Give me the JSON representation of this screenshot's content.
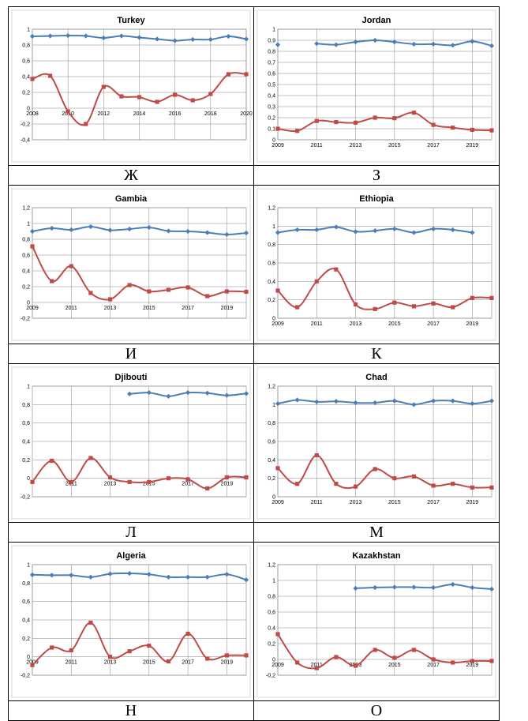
{
  "colors": {
    "series1": "#4a7ebb",
    "series2": "#be4b48",
    "grid": "#868686",
    "frame": "#d9d9d9"
  },
  "rows": [
    {
      "labels": [
        "Ж",
        "З"
      ]
    },
    {
      "labels": [
        "И",
        "К"
      ]
    },
    {
      "labels": [
        "Л",
        "М"
      ]
    },
    {
      "labels": [
        "Н",
        "О"
      ]
    }
  ],
  "chart_data": [
    {
      "type": "line",
      "title": "Turkey",
      "label": "Ж",
      "x": [
        2008,
        2009,
        2010,
        2011,
        2012,
        2013,
        2014,
        2015,
        2016,
        2017,
        2018,
        2019,
        2020
      ],
      "x_ticks": [
        "2008",
        "2010",
        "2012",
        "2014",
        "2016",
        "2018",
        "2020"
      ],
      "xlim": [
        2008,
        2020
      ],
      "ylim": [
        -0.4,
        1
      ],
      "y_ticks": [
        "-0,4",
        "-0,2",
        "0",
        "0,2",
        "0,4",
        "0,6",
        "0,8",
        "1"
      ],
      "series": [
        {
          "values": [
            0.91,
            0.915,
            0.92,
            0.915,
            0.89,
            0.915,
            0.895,
            0.875,
            0.855,
            0.87,
            0.87,
            0.91,
            0.875
          ]
        },
        {
          "values": [
            0.37,
            0.41,
            -0.04,
            -0.2,
            0.27,
            0.15,
            0.14,
            0.08,
            0.17,
            0.1,
            0.18,
            0.43,
            0.43
          ]
        }
      ]
    },
    {
      "type": "line",
      "title": "Jordan",
      "label": "З",
      "x": [
        2009,
        2010,
        2011,
        2012,
        2013,
        2014,
        2015,
        2016,
        2017,
        2018,
        2019,
        2020
      ],
      "x_ticks": [
        "2009",
        "2011",
        "2013",
        "2015",
        "2017",
        "2019"
      ],
      "xlim": [
        2009,
        2020
      ],
      "ylim": [
        0,
        1
      ],
      "y_ticks": [
        "0",
        "0,1",
        "0,2",
        "0,3",
        "0,4",
        "0,5",
        "0,6",
        "0,7",
        "0,8",
        "0,9",
        "1"
      ],
      "series": [
        {
          "values": [
            0.86,
            null,
            0.87,
            0.86,
            0.885,
            0.9,
            0.885,
            0.865,
            0.865,
            0.855,
            0.89,
            0.85
          ]
        },
        {
          "values": [
            0.1,
            0.08,
            0.17,
            0.16,
            0.155,
            0.2,
            0.195,
            0.245,
            0.135,
            0.11,
            0.09,
            0.085
          ]
        }
      ]
    },
    {
      "type": "line",
      "title": "Gambia",
      "label": "И",
      "x": [
        2009,
        2010,
        2011,
        2012,
        2013,
        2014,
        2015,
        2016,
        2017,
        2018,
        2019,
        2020
      ],
      "x_ticks": [
        "2009",
        "2011",
        "2013",
        "2015",
        "2017",
        "2019"
      ],
      "xlim": [
        2009,
        2020
      ],
      "ylim": [
        -0.2,
        1.2
      ],
      "y_ticks": [
        "-0,2",
        "0",
        "0,2",
        "0,4",
        "0,6",
        "0,8",
        "1",
        "1,2"
      ],
      "series": [
        {
          "values": [
            0.9,
            0.94,
            0.92,
            0.96,
            0.915,
            0.93,
            0.95,
            0.905,
            0.9,
            0.885,
            0.86,
            0.88
          ]
        },
        {
          "values": [
            0.71,
            0.27,
            0.46,
            0.12,
            0.04,
            0.22,
            0.14,
            0.16,
            0.19,
            0.08,
            0.14,
            0.135
          ]
        }
      ]
    },
    {
      "type": "line",
      "title": "Ethiopia",
      "label": "К",
      "x": [
        2009,
        2010,
        2011,
        2012,
        2013,
        2014,
        2015,
        2016,
        2017,
        2018,
        2019,
        2020
      ],
      "x_ticks": [
        "2009",
        "2011",
        "2013",
        "2015",
        "2017",
        "2019"
      ],
      "xlim": [
        2009,
        2020
      ],
      "ylim": [
        0,
        1.2
      ],
      "y_ticks": [
        "0",
        "0,2",
        "0,4",
        "0,6",
        "0,8",
        "1",
        "1,2"
      ],
      "series": [
        {
          "values": [
            0.93,
            0.96,
            0.96,
            0.99,
            0.94,
            0.95,
            0.97,
            0.93,
            0.97,
            0.96,
            0.93,
            null
          ]
        },
        {
          "values": [
            0.3,
            0.12,
            0.4,
            0.53,
            0.15,
            0.1,
            0.17,
            0.13,
            0.16,
            0.12,
            0.22,
            0.22
          ]
        }
      ]
    },
    {
      "type": "line",
      "title": "Djibouti",
      "label": "Л",
      "x": [
        2009,
        2010,
        2011,
        2012,
        2013,
        2014,
        2015,
        2016,
        2017,
        2018,
        2019,
        2020
      ],
      "x_ticks": [
        "2011",
        "2013",
        "2015",
        "2017",
        "2019"
      ],
      "xlim": [
        2009,
        2020
      ],
      "ylim": [
        -0.2,
        1
      ],
      "y_ticks": [
        "-0,2",
        "0",
        "0,2",
        "0,4",
        "0,6",
        "0,8",
        "1"
      ],
      "series": [
        {
          "values": [
            null,
            null,
            null,
            null,
            null,
            0.915,
            0.93,
            0.89,
            0.93,
            0.925,
            0.9,
            0.92
          ]
        },
        {
          "values": [
            -0.04,
            0.19,
            -0.04,
            0.22,
            0.01,
            -0.04,
            -0.04,
            0.0,
            -0.01,
            -0.11,
            0.01,
            0.01
          ]
        }
      ]
    },
    {
      "type": "line",
      "title": "Chad",
      "label": "М",
      "x": [
        2009,
        2010,
        2011,
        2012,
        2013,
        2014,
        2015,
        2016,
        2017,
        2018,
        2019,
        2020
      ],
      "x_ticks": [
        "2009",
        "2011",
        "2013",
        "2015",
        "2017",
        "2019"
      ],
      "xlim": [
        2009,
        2020
      ],
      "ylim": [
        0,
        1.2
      ],
      "y_ticks": [
        "0",
        "0,2",
        "0,4",
        "0,6",
        "0,8",
        "1",
        "1,2"
      ],
      "series": [
        {
          "values": [
            1.01,
            1.05,
            1.03,
            1.035,
            1.02,
            1.02,
            1.04,
            1.0,
            1.04,
            1.04,
            1.01,
            1.04
          ]
        },
        {
          "values": [
            0.31,
            0.14,
            0.45,
            0.14,
            0.11,
            0.3,
            0.2,
            0.22,
            0.12,
            0.14,
            0.1,
            0.1
          ]
        }
      ]
    },
    {
      "type": "line",
      "title": "Algeria",
      "label": "Н",
      "x": [
        2009,
        2010,
        2011,
        2012,
        2013,
        2014,
        2015,
        2016,
        2017,
        2018,
        2019,
        2020
      ],
      "x_ticks": [
        "2009",
        "2011",
        "2013",
        "2015",
        "2017",
        "2019"
      ],
      "xlim": [
        2009,
        2020
      ],
      "ylim": [
        -0.2,
        1
      ],
      "y_ticks": [
        "-0,2",
        "0",
        "0,2",
        "0,4",
        "0,6",
        "0,8",
        "1"
      ],
      "series": [
        {
          "values": [
            0.89,
            0.885,
            0.885,
            0.865,
            0.9,
            0.905,
            0.895,
            0.865,
            0.865,
            0.865,
            0.895,
            0.835
          ]
        },
        {
          "values": [
            -0.09,
            0.1,
            0.07,
            0.37,
            0.0,
            0.06,
            0.12,
            -0.05,
            0.25,
            -0.02,
            0.015,
            0.015
          ]
        }
      ]
    },
    {
      "type": "line",
      "title": "Kazakhstan",
      "label": "О",
      "x": [
        2009,
        2010,
        2011,
        2012,
        2013,
        2014,
        2015,
        2016,
        2017,
        2018,
        2019,
        2020
      ],
      "x_ticks": [
        "2009",
        "2011",
        "2013",
        "2015",
        "2017",
        "2019"
      ],
      "xlim": [
        2009,
        2020
      ],
      "ylim": [
        -0.2,
        1.2
      ],
      "y_ticks": [
        "-0,2",
        "0",
        "0,2",
        "0,4",
        "0,6",
        "0,8",
        "1",
        "1,2"
      ],
      "series": [
        {
          "values": [
            null,
            null,
            null,
            null,
            0.9,
            0.91,
            0.915,
            0.915,
            0.91,
            0.95,
            0.91,
            0.89
          ]
        },
        {
          "values": [
            0.32,
            -0.04,
            -0.11,
            0.03,
            -0.08,
            0.12,
            0.02,
            0.12,
            0.0,
            -0.04,
            -0.02,
            -0.02
          ]
        }
      ]
    }
  ]
}
